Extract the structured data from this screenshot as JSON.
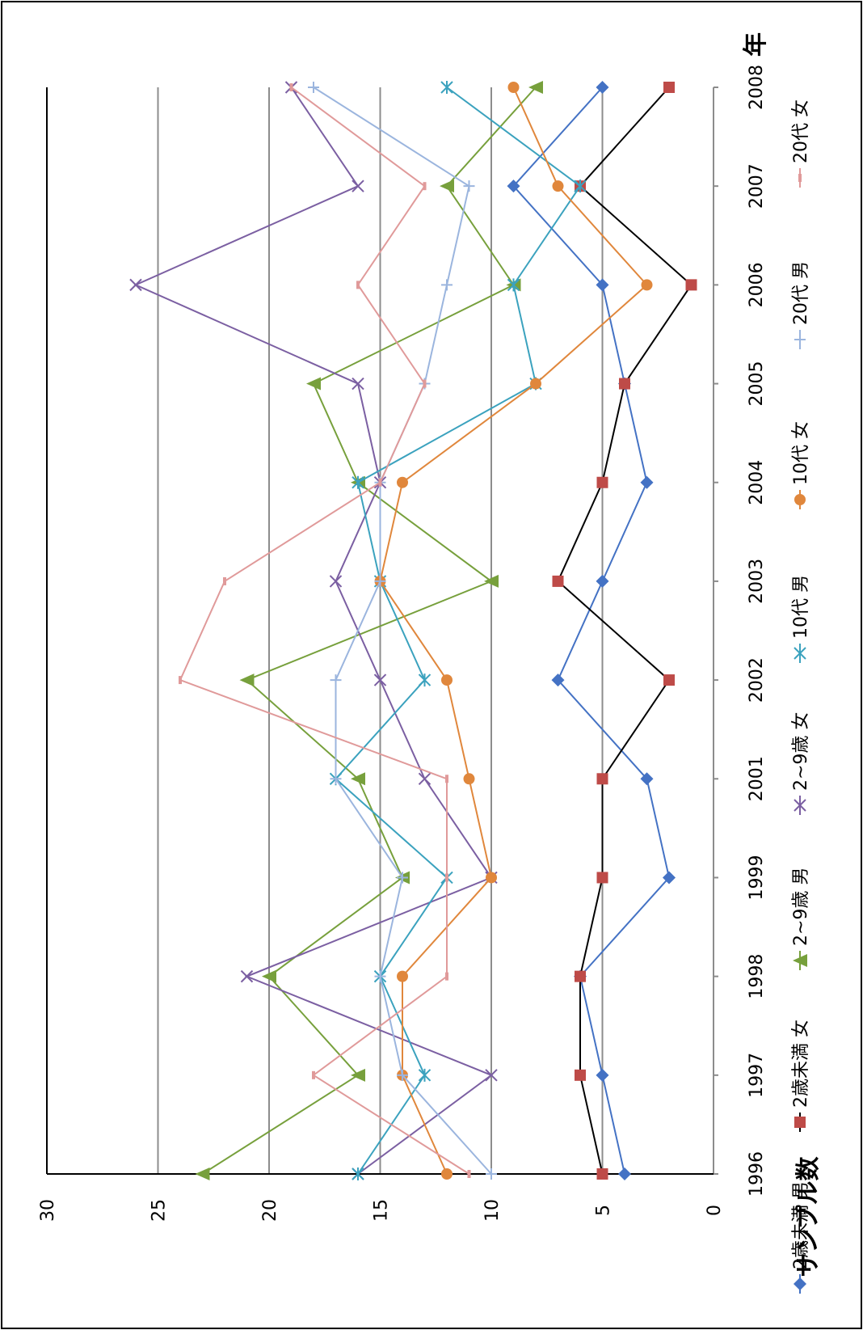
{
  "chart_data": {
    "type": "line",
    "orientation": "rotated-90-clockwise",
    "xlabel": "年",
    "ylabel": "サンプル数",
    "ylim": [
      0,
      30
    ],
    "yticks": [
      0,
      5,
      10,
      15,
      20,
      25,
      30
    ],
    "categories": [
      "1996",
      "1997",
      "1998",
      "1999",
      "2001",
      "2002",
      "2003",
      "2004",
      "2005",
      "2006",
      "2007",
      "2008"
    ],
    "grid": true,
    "legend_position": "bottom",
    "series": [
      {
        "name": "2歳未満 男",
        "color": "#4472c4",
        "marker": "diamond",
        "values": [
          4,
          5,
          6,
          2,
          3,
          7,
          5,
          3,
          4,
          5,
          9,
          5
        ]
      },
      {
        "name": "2歳未満 女",
        "color": "#be4b48",
        "line_color": "#000000",
        "marker": "square",
        "values": [
          5,
          6,
          6,
          5,
          5,
          2,
          7,
          5,
          4,
          1,
          6,
          2
        ]
      },
      {
        "name": "2~9歳 男",
        "color": "#77a03c",
        "marker": "triangle",
        "values": [
          23,
          16,
          20,
          14,
          16,
          21,
          10,
          16,
          18,
          9,
          12,
          8
        ]
      },
      {
        "name": "2~9歳 女",
        "color": "#7b5fa2",
        "marker": "x",
        "values": [
          16,
          10,
          21,
          10,
          13,
          15,
          17,
          15,
          16,
          26,
          16,
          19
        ]
      },
      {
        "name": "10代 男",
        "color": "#3ba2be",
        "marker": "asterisk",
        "values": [
          16,
          13,
          15,
          12,
          17,
          13,
          15,
          16,
          8,
          9,
          6,
          12
        ]
      },
      {
        "name": "10代 女",
        "color": "#e0873c",
        "marker": "circle",
        "values": [
          12,
          14,
          14,
          10,
          11,
          12,
          15,
          14,
          8,
          3,
          7,
          9
        ]
      },
      {
        "name": "20代 男",
        "color": "#9bb5de",
        "marker": "plus",
        "values": [
          10,
          14,
          15,
          14,
          17,
          17,
          15,
          15,
          13,
          12,
          11,
          18
        ]
      },
      {
        "name": "20代 女",
        "color": "#e09a9a",
        "marker": "dash",
        "values": [
          11,
          18,
          12,
          12,
          12,
          24,
          22,
          15,
          13,
          16,
          13,
          19
        ]
      }
    ]
  }
}
